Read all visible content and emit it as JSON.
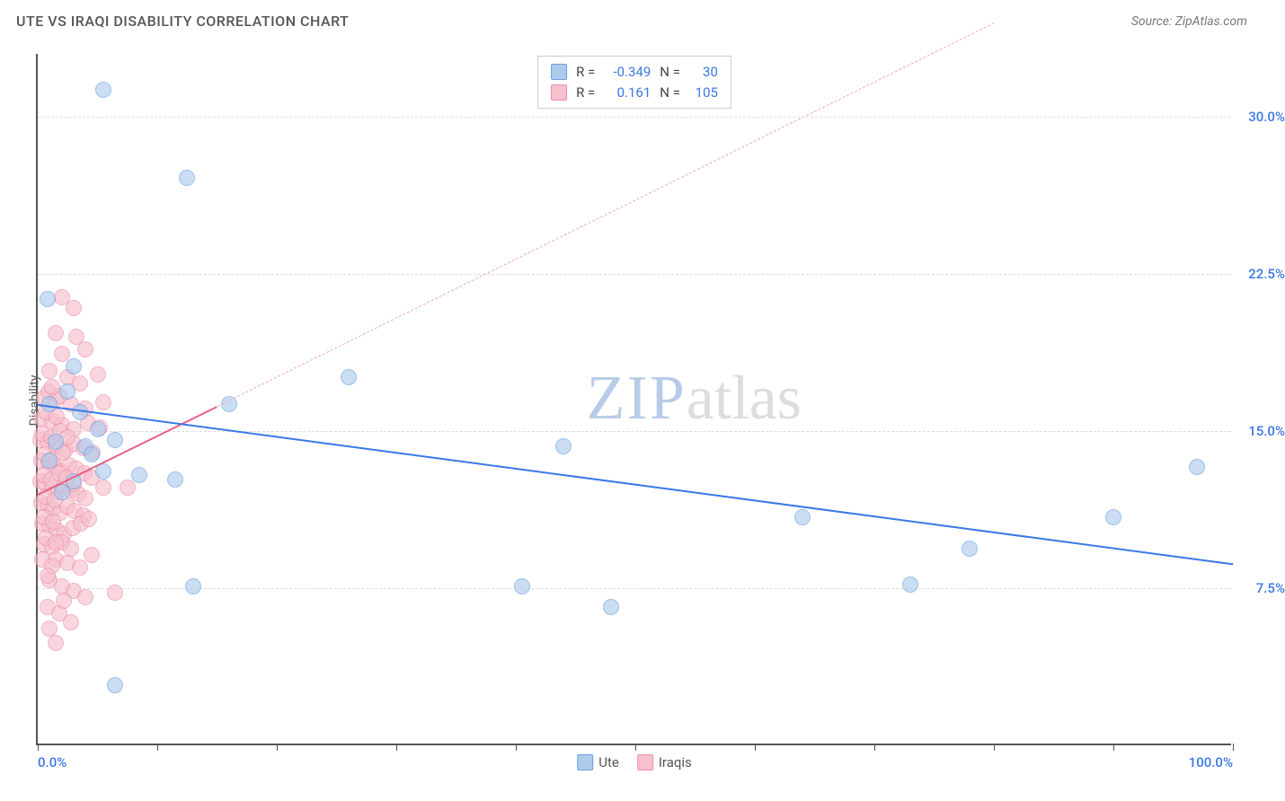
{
  "title": "UTE VS IRAQI DISABILITY CORRELATION CHART",
  "source": "Source: ZipAtlas.com",
  "ylabel": "Disability",
  "watermark": {
    "part1": "ZIP",
    "part2": "atlas"
  },
  "chart": {
    "type": "scatter",
    "background_color": "#ffffff",
    "grid_color": "#dddddd",
    "axis_color": "#555555",
    "xlim": [
      0,
      100
    ],
    "ylim": [
      0,
      33
    ],
    "xticks": [
      0,
      10,
      20,
      30,
      40,
      50,
      60,
      70,
      80,
      90,
      100
    ],
    "xtick_labels": {
      "0": "0.0%",
      "100": "100.0%"
    },
    "yticks": [
      7.5,
      15.0,
      22.5,
      30.0
    ],
    "ytick_labels": [
      "7.5%",
      "15.0%",
      "22.5%",
      "30.0%"
    ],
    "ytick_color": "#3b78e7",
    "xtick_color": "#3b78e7",
    "point_radius": 9,
    "point_opacity": 0.65
  },
  "series": [
    {
      "name": "Ute",
      "color_fill": "#aecbec",
      "color_stroke": "#6a9fe0",
      "r_label": "R =",
      "r_value": "-0.349",
      "n_label": "N =",
      "n_value": "30",
      "value_color": "#3b78e7",
      "trend": {
        "x1": 0,
        "y1": 16.3,
        "x2": 100,
        "y2": 8.7,
        "style": "solid",
        "color": "#3b78e7",
        "width": 2.5
      },
      "points": [
        [
          5.5,
          31.2
        ],
        [
          12.5,
          27.0
        ],
        [
          0.8,
          21.2
        ],
        [
          3.0,
          18.0
        ],
        [
          1.0,
          16.2
        ],
        [
          3.5,
          15.8
        ],
        [
          5.0,
          15.0
        ],
        [
          16.0,
          16.2
        ],
        [
          26.0,
          17.5
        ],
        [
          1.5,
          14.4
        ],
        [
          4.0,
          14.2
        ],
        [
          5.5,
          13.0
        ],
        [
          8.5,
          12.8
        ],
        [
          11.5,
          12.6
        ],
        [
          3.0,
          12.5
        ],
        [
          44.0,
          14.2
        ],
        [
          13.0,
          7.5
        ],
        [
          40.5,
          7.5
        ],
        [
          48.0,
          6.5
        ],
        [
          6.5,
          2.8
        ],
        [
          64.0,
          10.8
        ],
        [
          73.0,
          7.6
        ],
        [
          78.0,
          9.3
        ],
        [
          90.0,
          10.8
        ],
        [
          97.0,
          13.2
        ],
        [
          1.0,
          13.5
        ],
        [
          2.0,
          12.0
        ],
        [
          4.5,
          13.8
        ],
        [
          6.5,
          14.5
        ],
        [
          2.5,
          16.8
        ]
      ]
    },
    {
      "name": "Iraqis",
      "color_fill": "#f6c0cd",
      "color_stroke": "#ec8fa8",
      "r_label": "R =",
      "r_value": "0.161",
      "n_label": "N =",
      "n_value": "105",
      "value_color": "#3b78e7",
      "trend_solid": {
        "x1": 0,
        "y1": 12.0,
        "x2": 15,
        "y2": 16.2,
        "style": "solid",
        "color": "#e96085",
        "width": 2.5
      },
      "trend_dashed": {
        "x1": 15,
        "y1": 16.2,
        "x2": 80,
        "y2": 34.5,
        "style": "dashed",
        "color": "#f0a8ba",
        "width": 1.5
      },
      "points": [
        [
          2.0,
          21.3
        ],
        [
          3.0,
          20.8
        ],
        [
          1.5,
          19.6
        ],
        [
          3.2,
          19.4
        ],
        [
          2.0,
          18.6
        ],
        [
          4.0,
          18.8
        ],
        [
          1.0,
          17.8
        ],
        [
          2.5,
          17.5
        ],
        [
          3.5,
          17.2
        ],
        [
          5.0,
          17.6
        ],
        [
          0.5,
          16.5
        ],
        [
          1.5,
          16.4
        ],
        [
          2.8,
          16.2
        ],
        [
          4.0,
          16.0
        ],
        [
          5.5,
          16.3
        ],
        [
          0.3,
          15.5
        ],
        [
          1.2,
          15.4
        ],
        [
          2.0,
          15.2
        ],
        [
          3.0,
          15.0
        ],
        [
          4.2,
          15.3
        ],
        [
          5.2,
          15.1
        ],
        [
          0.2,
          14.5
        ],
        [
          0.8,
          14.4
        ],
        [
          1.5,
          14.2
        ],
        [
          2.3,
          14.0
        ],
        [
          3.0,
          14.3
        ],
        [
          3.8,
          14.1
        ],
        [
          4.6,
          13.9
        ],
        [
          0.3,
          13.5
        ],
        [
          0.9,
          13.4
        ],
        [
          1.4,
          13.2
        ],
        [
          2.0,
          13.0
        ],
        [
          2.6,
          13.3
        ],
        [
          3.2,
          13.1
        ],
        [
          3.9,
          12.9
        ],
        [
          4.5,
          12.7
        ],
        [
          0.2,
          12.5
        ],
        [
          0.7,
          12.4
        ],
        [
          1.2,
          12.2
        ],
        [
          1.7,
          12.0
        ],
        [
          2.2,
          12.3
        ],
        [
          2.8,
          12.1
        ],
        [
          3.4,
          11.9
        ],
        [
          4.0,
          11.7
        ],
        [
          5.5,
          12.2
        ],
        [
          7.5,
          12.2
        ],
        [
          0.3,
          11.5
        ],
        [
          0.8,
          11.4
        ],
        [
          1.3,
          11.2
        ],
        [
          1.9,
          11.0
        ],
        [
          2.5,
          11.3
        ],
        [
          3.1,
          11.1
        ],
        [
          3.8,
          10.9
        ],
        [
          0.4,
          10.5
        ],
        [
          1.0,
          10.4
        ],
        [
          1.6,
          10.2
        ],
        [
          2.2,
          10.0
        ],
        [
          2.9,
          10.3
        ],
        [
          3.6,
          10.5
        ],
        [
          4.3,
          10.7
        ],
        [
          0.5,
          9.5
        ],
        [
          1.2,
          9.4
        ],
        [
          2.0,
          9.6
        ],
        [
          2.8,
          9.3
        ],
        [
          1.5,
          8.8
        ],
        [
          2.5,
          8.6
        ],
        [
          3.5,
          8.4
        ],
        [
          4.5,
          9.0
        ],
        [
          1.0,
          7.8
        ],
        [
          2.0,
          7.5
        ],
        [
          3.0,
          7.3
        ],
        [
          4.0,
          7.0
        ],
        [
          6.5,
          7.2
        ],
        [
          0.8,
          6.5
        ],
        [
          1.8,
          6.2
        ],
        [
          2.8,
          5.8
        ],
        [
          1.5,
          4.8
        ],
        [
          0.5,
          12.8
        ],
        [
          1.1,
          12.6
        ],
        [
          1.8,
          12.9
        ],
        [
          2.4,
          12.7
        ],
        [
          3.0,
          12.4
        ],
        [
          0.6,
          13.8
        ],
        [
          1.3,
          13.6
        ],
        [
          2.1,
          13.9
        ],
        [
          0.4,
          14.8
        ],
        [
          1.1,
          14.6
        ],
        [
          1.9,
          14.9
        ],
        [
          0.7,
          15.8
        ],
        [
          1.6,
          15.6
        ],
        [
          0.9,
          16.8
        ],
        [
          1.8,
          16.6
        ],
        [
          1.2,
          17.0
        ],
        [
          0.6,
          11.8
        ],
        [
          1.4,
          11.6
        ],
        [
          0.5,
          10.8
        ],
        [
          1.3,
          10.6
        ],
        [
          0.7,
          9.8
        ],
        [
          1.5,
          9.6
        ],
        [
          0.4,
          8.8
        ],
        [
          1.2,
          8.5
        ],
        [
          0.8,
          8.0
        ],
        [
          2.2,
          6.8
        ],
        [
          1.0,
          5.5
        ],
        [
          2.5,
          14.6
        ]
      ]
    }
  ],
  "bottom_legend": [
    {
      "label": "Ute",
      "fill": "#aecbec",
      "stroke": "#6a9fe0"
    },
    {
      "label": "Iraqis",
      "fill": "#f6c0cd",
      "stroke": "#ec8fa8"
    }
  ]
}
